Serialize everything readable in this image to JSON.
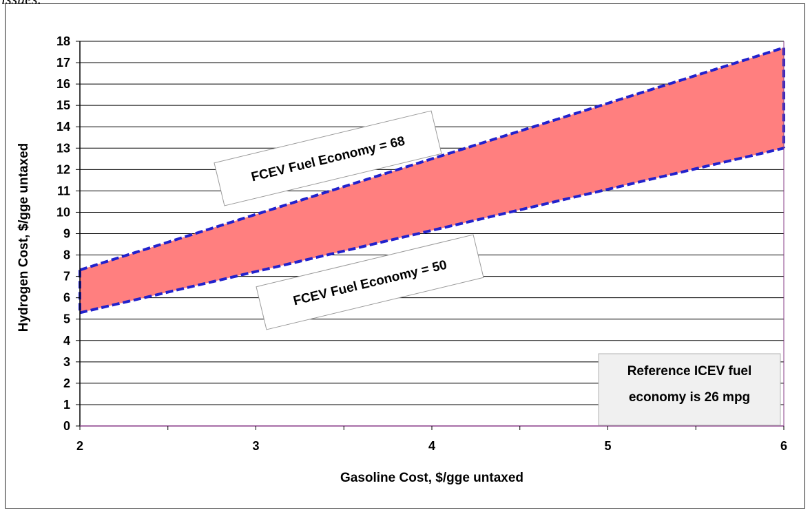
{
  "caption_fragment": "issues.",
  "colors": {
    "band_fill": "#FF7F7F",
    "boundary_line": "#2222CC",
    "gridline": "#000000",
    "note_fill": "#F0F0F0"
  },
  "chart_data": {
    "type": "area",
    "title": "",
    "xlabel": "Gasoline  Cost, $/gge untaxed",
    "ylabel": "Hydrogen Cost,  $/gge untaxed",
    "xlim": [
      2,
      6
    ],
    "ylim": [
      0,
      18
    ],
    "x_ticks": [
      "2",
      "3",
      "4",
      "5",
      "6"
    ],
    "y_ticks": [
      "0",
      "1",
      "2",
      "3",
      "4",
      "5",
      "6",
      "7",
      "8",
      "9",
      "10",
      "11",
      "12",
      "13",
      "14",
      "15",
      "16",
      "17",
      "18"
    ],
    "grid": "horizontal",
    "series": [
      {
        "name": "FCEV Fuel Economy = 68",
        "x": [
          2,
          6
        ],
        "y": [
          7.3,
          17.7
        ]
      },
      {
        "name": "FCEV Fuel Economy = 50",
        "x": [
          2,
          6
        ],
        "y": [
          5.3,
          13.0
        ]
      }
    ],
    "annotations": [
      {
        "text": "FCEV Fuel Economy = 68",
        "target": "upper"
      },
      {
        "text": "FCEV Fuel Economy = 50",
        "target": "lower"
      },
      {
        "text_lines": [
          "Reference ICEV fuel",
          "economy is 26 mpg"
        ],
        "placement": "bottom-right"
      }
    ]
  }
}
